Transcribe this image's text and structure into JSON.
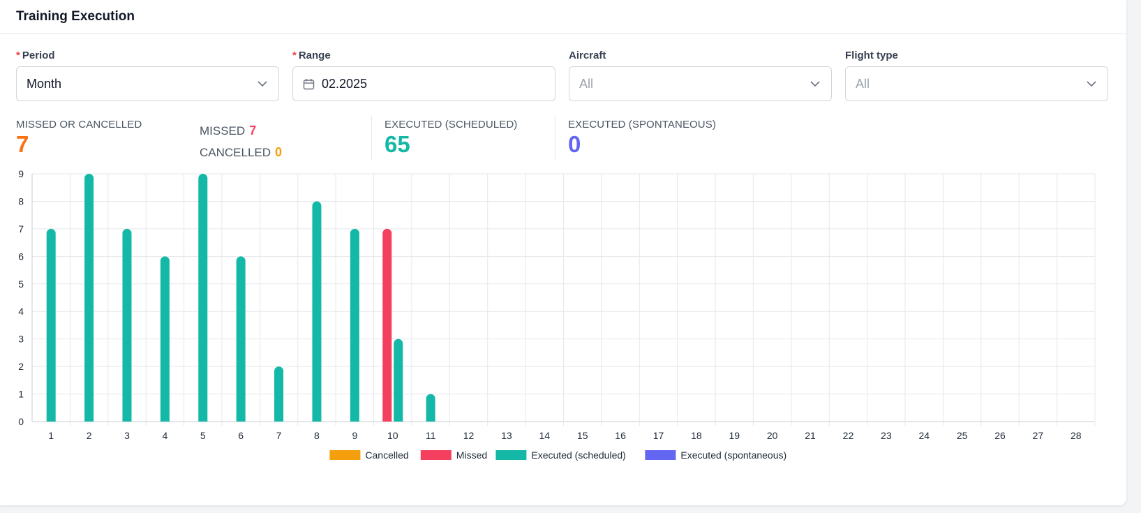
{
  "header": {
    "title": "Training Execution"
  },
  "filters": {
    "period": {
      "label": "Period",
      "value": "Month",
      "required": true
    },
    "range": {
      "label": "Range",
      "value": "02.2025",
      "required": true
    },
    "aircraft": {
      "label": "Aircraft",
      "placeholder": "All",
      "required": false
    },
    "flight_type": {
      "label": "Flight type",
      "placeholder": "All",
      "required": false
    }
  },
  "stats": {
    "missed_or_cancelled": {
      "label": "MISSED OR CANCELLED",
      "value": "7"
    },
    "missed": {
      "label": "MISSED",
      "value": "7"
    },
    "cancelled": {
      "label": "CANCELLED",
      "value": "0"
    },
    "executed_scheduled": {
      "label": "EXECUTED (SCHEDULED)",
      "value": "65"
    },
    "executed_spontaneous": {
      "label": "EXECUTED (SPONTANEOUS)",
      "value": "0"
    }
  },
  "colors": {
    "cancelled": "#f59e0b",
    "missed": "#f43f5e",
    "executed_scheduled": "#14b8a6",
    "executed_spontaneous": "#6366f1",
    "missed_or_cancelled_value": "#f97316",
    "grid": "#e5e7eb"
  },
  "icons": {
    "period_select": "chevron-down-icon",
    "range_picker": "calendar-icon",
    "aircraft_select": "chevron-down-icon",
    "flight_type_select": "chevron-down-icon"
  },
  "chart_data": {
    "type": "bar",
    "categories": [
      "1",
      "2",
      "3",
      "4",
      "5",
      "6",
      "7",
      "8",
      "9",
      "10",
      "11",
      "12",
      "13",
      "14",
      "15",
      "16",
      "17",
      "18",
      "19",
      "20",
      "21",
      "22",
      "23",
      "24",
      "25",
      "26",
      "27",
      "28"
    ],
    "ylim": [
      0,
      9
    ],
    "yticks": [
      "0",
      "1",
      "2",
      "3",
      "4",
      "5",
      "6",
      "7",
      "8",
      "9"
    ],
    "grid": true,
    "legend_position": "bottom-center",
    "series": [
      {
        "name": "Cancelled",
        "color": "#f59e0b",
        "values": [
          0,
          0,
          0,
          0,
          0,
          0,
          0,
          0,
          0,
          0,
          0,
          0,
          0,
          0,
          0,
          0,
          0,
          0,
          0,
          0,
          0,
          0,
          0,
          0,
          0,
          0,
          0,
          0
        ]
      },
      {
        "name": "Missed",
        "color": "#f43f5e",
        "values": [
          0,
          0,
          0,
          0,
          0,
          0,
          0,
          0,
          0,
          7,
          0,
          0,
          0,
          0,
          0,
          0,
          0,
          0,
          0,
          0,
          0,
          0,
          0,
          0,
          0,
          0,
          0,
          0
        ]
      },
      {
        "name": "Executed (scheduled)",
        "color": "#14b8a6",
        "values": [
          7,
          9,
          7,
          6,
          9,
          6,
          2,
          8,
          7,
          3,
          1,
          0,
          0,
          0,
          0,
          0,
          0,
          0,
          0,
          0,
          0,
          0,
          0,
          0,
          0,
          0,
          0,
          0
        ]
      },
      {
        "name": "Executed (spontaneous)",
        "color": "#6366f1",
        "values": [
          0,
          0,
          0,
          0,
          0,
          0,
          0,
          0,
          0,
          0,
          0,
          0,
          0,
          0,
          0,
          0,
          0,
          0,
          0,
          0,
          0,
          0,
          0,
          0,
          0,
          0,
          0,
          0
        ]
      }
    ]
  }
}
